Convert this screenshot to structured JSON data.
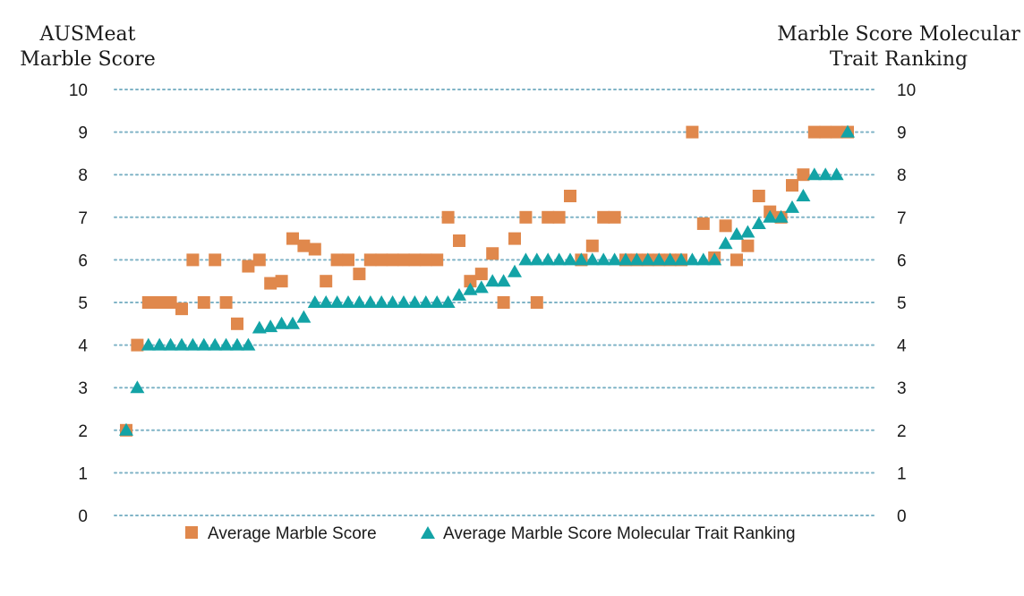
{
  "chart_data": {
    "type": "scatter",
    "title": "",
    "left_axis_title": [
      "AUSMeat",
      "Marble Score"
    ],
    "right_axis_title": [
      "Marble Score Molecular",
      "Trait Ranking"
    ],
    "ylim": [
      0,
      10
    ],
    "y_ticks": [
      "0",
      "1",
      "2",
      "3",
      "4",
      "5",
      "6",
      "7",
      "8",
      "9",
      "10"
    ],
    "grid": true,
    "legend_position": "bottom",
    "n_points": 63,
    "series": [
      {
        "name": "Average Marble Score",
        "marker": "square",
        "color": "#e0884c",
        "x": [
          1,
          2,
          3,
          4,
          5,
          6,
          7,
          8,
          9,
          10,
          11,
          12,
          13,
          14,
          15,
          16,
          17,
          18,
          19,
          20,
          21,
          22,
          23,
          24,
          25,
          26,
          27,
          28,
          29,
          30,
          31,
          32,
          33,
          34,
          35,
          36,
          37,
          38,
          39,
          40,
          41,
          42,
          43,
          44,
          45,
          46,
          47,
          48,
          49,
          50,
          51,
          52,
          53,
          54,
          55,
          56,
          57,
          58,
          59,
          60,
          61,
          62,
          63
        ],
        "values": [
          2,
          4,
          5,
          5,
          5,
          4.85,
          6,
          5,
          6,
          5,
          4.5,
          5.85,
          6,
          5.45,
          5.5,
          6.5,
          6.33,
          6.25,
          5.5,
          6,
          6,
          5.67,
          6,
          6,
          6,
          6,
          6,
          6,
          6,
          7,
          6.45,
          5.5,
          5.67,
          6.15,
          5,
          6.5,
          7,
          5,
          7,
          7,
          7.5,
          6,
          6.33,
          7,
          7,
          6,
          6,
          6,
          6,
          6,
          6,
          9,
          6.85,
          6.05,
          6.8,
          6,
          6.33,
          7.5,
          7.13,
          7,
          7.75,
          8,
          9
        ]
      },
      {
        "name": "Average Marble Score Molecular Trait Ranking",
        "marker": "triangle",
        "color": "#13a3a6",
        "x": [
          1,
          2,
          3,
          4,
          5,
          6,
          7,
          8,
          9,
          10,
          11,
          12,
          13,
          14,
          15,
          16,
          17,
          18,
          19,
          20,
          21,
          22,
          23,
          24,
          25,
          26,
          27,
          28,
          29,
          30,
          31,
          32,
          33,
          34,
          35,
          36,
          37,
          38,
          39,
          40,
          41,
          42,
          43,
          44,
          45,
          46,
          47,
          48,
          49,
          50,
          51,
          52,
          53,
          54,
          55,
          56,
          57,
          58,
          59,
          60,
          61,
          62,
          63
        ],
        "values": [
          2,
          3,
          4,
          4,
          4,
          4,
          4,
          4,
          4,
          4,
          4,
          4,
          4.4,
          4.43,
          4.5,
          4.5,
          4.65,
          5,
          5,
          5,
          5,
          5,
          5,
          5,
          5,
          5,
          5,
          5,
          5,
          5,
          5.17,
          5.3,
          5.35,
          5.5,
          5.5,
          5.72,
          6,
          6,
          6,
          6,
          6,
          6,
          6,
          6,
          6,
          6,
          6,
          6,
          6,
          6,
          6,
          6,
          6,
          6,
          6.38,
          6.6,
          6.65,
          6.85,
          7,
          7,
          7.23,
          7.5,
          8
        ]
      }
    ],
    "extra_points": [
      {
        "series": 0,
        "x": [
          64,
          65,
          66
        ],
        "values": [
          9,
          9,
          9
        ]
      },
      {
        "series": 1,
        "x": [
          64,
          65,
          66
        ],
        "values": [
          8,
          8,
          9
        ]
      }
    ]
  }
}
